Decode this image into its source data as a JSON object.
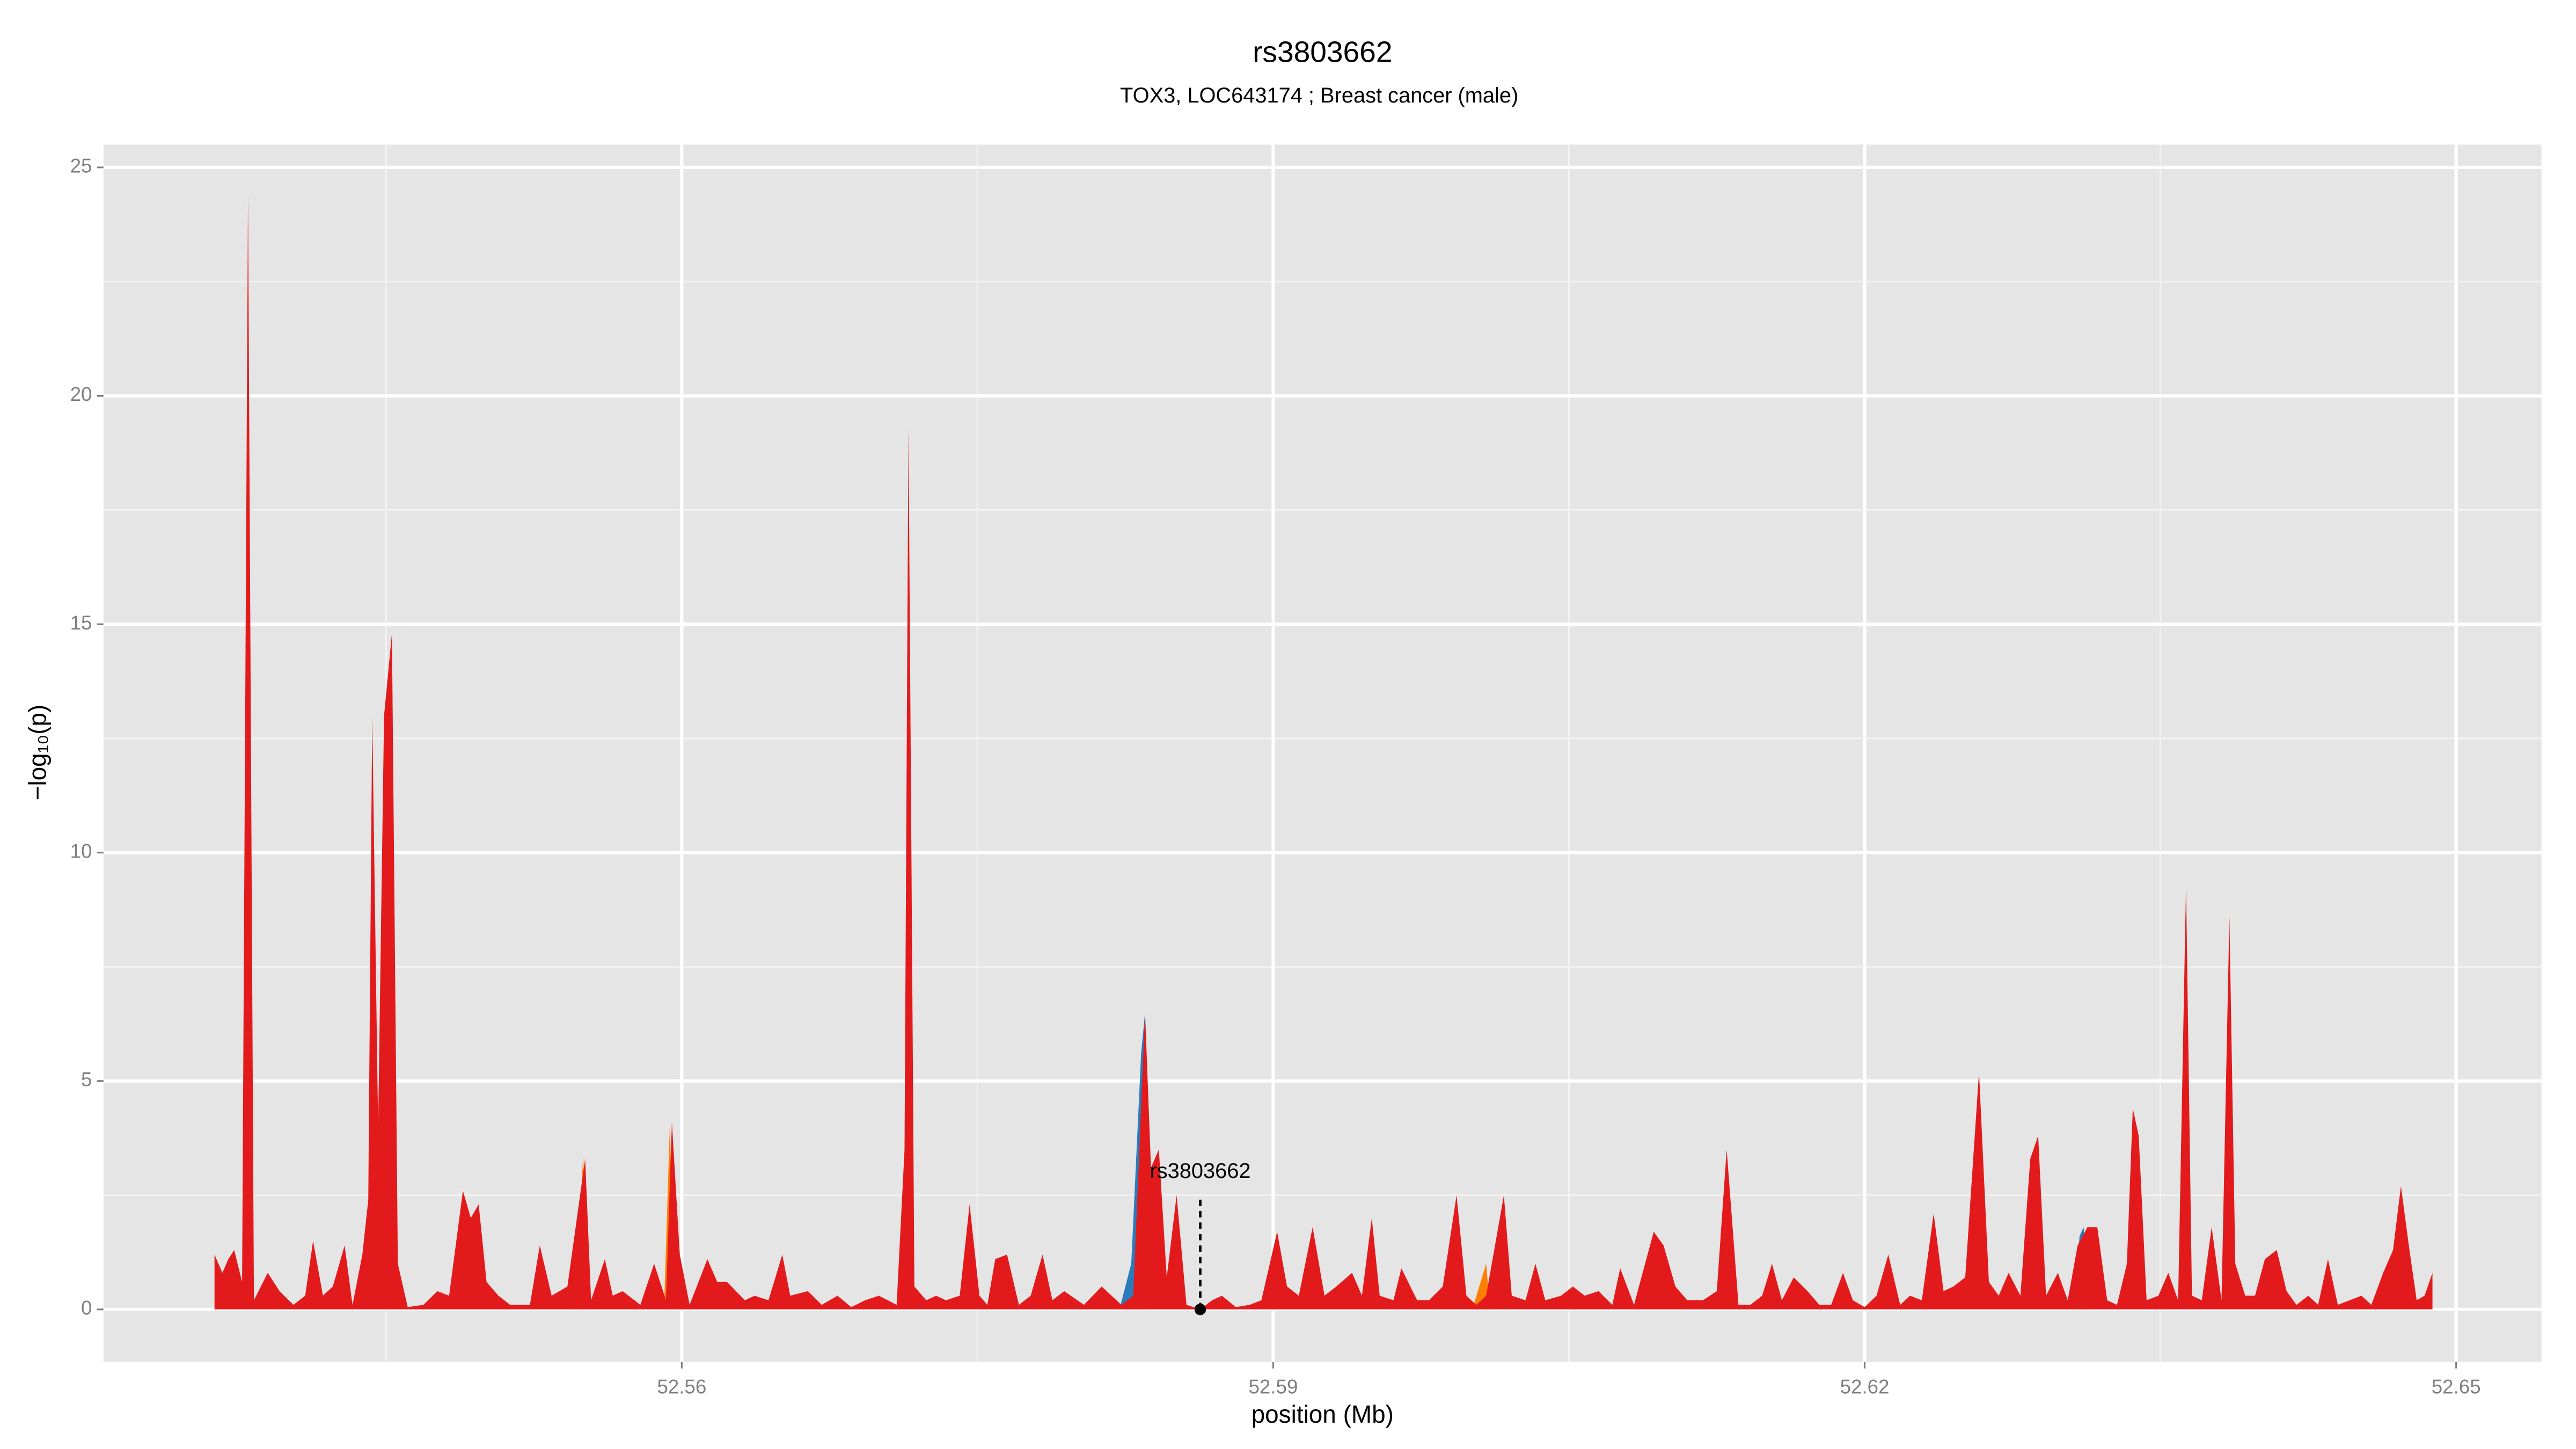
{
  "chart_data": {
    "type": "area",
    "title": "rs3803662",
    "subtitle": "TOX3, LOC643174 ; Breast cancer (male)",
    "xlabel": "position (Mb)",
    "ylabel": "−log₁₀(p)",
    "color": "#e31a1c",
    "x": [
      52.5363,
      52.5367,
      52.537,
      52.5373,
      52.5377,
      52.538,
      52.5383,
      52.539,
      52.5396,
      52.5403,
      52.5409,
      52.5413,
      52.5418,
      52.5423,
      52.5429,
      52.5433,
      52.5438,
      52.5441,
      52.5443,
      52.5446,
      52.5449,
      52.5453,
      52.5456,
      52.5461,
      52.5469,
      52.5476,
      52.5482,
      52.5489,
      52.5493,
      52.5497,
      52.5501,
      52.5507,
      52.5513,
      52.5523,
      52.5528,
      52.5534,
      52.5542,
      52.5551,
      52.5554,
      52.5561,
      52.5565,
      52.557,
      52.5579,
      52.5586,
      52.5592,
      52.5595,
      52.5599,
      52.5604,
      52.5613,
      52.5618,
      52.5623,
      52.5632,
      52.5637,
      52.5644,
      52.5651,
      52.5655,
      52.5664,
      52.5671,
      52.5679,
      52.5686,
      52.5693,
      52.57,
      52.5709,
      52.5713,
      52.5715,
      52.5718,
      52.5724,
      52.5729,
      52.5734,
      52.5741,
      52.5746,
      52.5751,
      52.5755,
      52.5759,
      52.5765,
      52.5771,
      52.5777,
      52.5783,
      52.5788,
      52.5794,
      52.5804,
      52.5813,
      52.5823,
      52.5829,
      52.5835,
      52.5838,
      52.5842,
      52.5846,
      52.5851,
      52.5856,
      52.5863,
      52.5869,
      52.5874,
      52.5881,
      52.5888,
      52.5894,
      52.5902,
      52.5907,
      52.5913,
      52.592,
      52.5926,
      52.5932,
      52.594,
      52.5945,
      52.595,
      52.5954,
      52.5961,
      52.5965,
      52.5973,
      52.5979,
      52.5986,
      52.5993,
      52.5998,
      52.6003,
      52.6008,
      52.6017,
      52.6021,
      52.6028,
      52.6033,
      52.6038,
      52.6046,
      52.6052,
      52.6058,
      52.6065,
      52.6072,
      52.6076,
      52.6083,
      52.6093,
      52.6098,
      52.6104,
      52.611,
      52.6118,
      52.6125,
      52.613,
      52.6136,
      52.6142,
      52.6148,
      52.6153,
      52.6158,
      52.6164,
      52.6171,
      52.6177,
      52.6183,
      52.6189,
      52.6194,
      52.62,
      52.6206,
      52.6212,
      52.6218,
      52.6223,
      52.6229,
      52.6235,
      52.624,
      52.6245,
      52.6251,
      52.6258,
      52.6263,
      52.6268,
      52.6273,
      52.6279,
      52.6284,
      52.6288,
      52.6292,
      52.6298,
      52.6303,
      52.6308,
      52.6313,
      52.6318,
      52.6323,
      52.6328,
      52.6333,
      52.6336,
      52.6339,
      52.6343,
      52.6349,
      52.6354,
      52.6359,
      52.6363,
      52.6366,
      52.6371,
      52.6376,
      52.6381,
      52.6385,
      52.6388,
      52.6393,
      52.6398,
      52.6403,
      52.6409,
      52.6414,
      52.6419,
      52.6425,
      52.643,
      52.6435,
      52.644,
      52.6446,
      52.6452,
      52.6457,
      52.6463,
      52.6468,
      52.6472,
      52.6476,
      52.648,
      52.6484,
      52.6488
    ],
    "values": [
      1.2,
      0.8,
      1.1,
      1.3,
      0.6,
      24.4,
      0.2,
      0.8,
      0.4,
      0.1,
      0.3,
      1.5,
      0.3,
      0.5,
      1.4,
      0.1,
      1.2,
      2.4,
      13,
      4,
      13,
      14.8,
      1,
      0.05,
      0.1,
      0.4,
      0.3,
      2.6,
      2.0,
      2.3,
      0.6,
      0.3,
      0.1,
      0.1,
      1.4,
      0.3,
      0.5,
      3.3,
      0.2,
      1.1,
      0.3,
      0.4,
      0.1,
      1.0,
      0.2,
      4.1,
      1.2,
      0.1,
      1.1,
      0.6,
      0.6,
      0.2,
      0.3,
      0.2,
      1.2,
      0.3,
      0.4,
      0.1,
      0.3,
      0.05,
      0.2,
      0.3,
      0.1,
      3.5,
      19.3,
      0.5,
      0.2,
      0.3,
      0.2,
      0.3,
      2.3,
      0.3,
      0.1,
      1.1,
      1.2,
      0.1,
      0.3,
      1.2,
      0.2,
      0.4,
      0.1,
      0.5,
      0.1,
      0.3,
      6.5,
      3.1,
      3.5,
      0.7,
      2.5,
      0.1,
      0,
      0.2,
      0.3,
      0.05,
      0.1,
      0.2,
      1.7,
      0.5,
      0.3,
      1.8,
      0.3,
      0.5,
      0.8,
      0.3,
      2.0,
      0.3,
      0.2,
      0.9,
      0.2,
      0.2,
      0.5,
      2.5,
      0.3,
      0.1,
      0.3,
      2.5,
      0.3,
      0.2,
      1.0,
      0.2,
      0.3,
      0.5,
      0.3,
      0.4,
      0.1,
      0.9,
      0.1,
      1.7,
      1.4,
      0.5,
      0.2,
      0.2,
      0.4,
      3.5,
      0.1,
      0.1,
      0.3,
      1.0,
      0.2,
      0.7,
      0.4,
      0.1,
      0.1,
      0.8,
      0.2,
      0.05,
      0.3,
      1.2,
      0.1,
      0.3,
      0.2,
      2.1,
      0.4,
      0.5,
      0.7,
      5.2,
      0.6,
      0.3,
      0.8,
      0.3,
      3.3,
      3.8,
      0.3,
      0.8,
      0.2,
      1.4,
      1.8,
      1.8,
      0.2,
      0.1,
      1.0,
      4.4,
      3.8,
      0.2,
      0.3,
      0.8,
      0.2,
      9.3,
      0.3,
      0.2,
      1.8,
      0.2,
      8.6,
      1.0,
      0.3,
      0.3,
      1.1,
      1.3,
      0.4,
      0.1,
      0.3,
      0.1,
      1.1,
      0.1,
      0.2,
      0.3,
      0.1,
      0.8,
      1.3,
      2.7,
      1.4,
      0.2,
      0.3,
      0.8
    ],
    "areas": [
      {
        "color": "#2b7bba",
        "x": [
          52.5822,
          52.5828,
          52.5833,
          52.5835,
          52.5838
        ],
        "values": [
          0,
          1.0,
          5.6,
          6.5,
          0
        ]
      },
      {
        "color": "#2b7bba",
        "x": [
          52.6306,
          52.6309,
          52.6311,
          52.6315
        ],
        "values": [
          0,
          1.6,
          1.8,
          0
        ]
      },
      {
        "color": "#ff7f00",
        "x": [
          52.5546,
          52.555,
          52.5552
        ],
        "values": [
          0,
          3.4,
          0
        ]
      },
      {
        "color": "#ff7f00",
        "x": [
          52.5591,
          52.5594,
          52.5596
        ],
        "values": [
          0,
          4.1,
          0
        ]
      },
      {
        "color": "#ff7f00",
        "x": [
          52.6001,
          52.6008,
          52.601
        ],
        "values": [
          0,
          1.0,
          0
        ]
      }
    ],
    "annotation": {
      "label": "rs3803662",
      "x": 52.5863,
      "y": 0
    },
    "xlim": [
      52.53067,
      52.65433
    ],
    "ylim": [
      -1.15,
      25.5
    ],
    "xticks": [
      52.56,
      52.59,
      52.62,
      52.65
    ],
    "yticks": [
      0,
      5,
      10,
      15,
      20,
      25
    ],
    "grid": true
  }
}
